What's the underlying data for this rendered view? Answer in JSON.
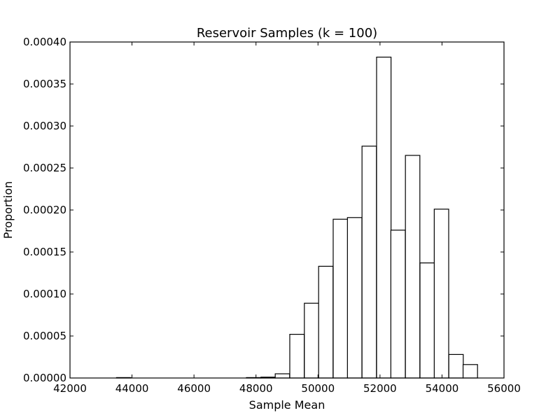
{
  "chart_data": {
    "type": "histogram",
    "title": "Reservoir Samples (k = 100)",
    "xlabel": "Sample Mean",
    "ylabel": "Proportion",
    "xlim": [
      42000,
      56000
    ],
    "ylim": [
      0,
      0.0004
    ],
    "xticks": [
      42000,
      44000,
      46000,
      48000,
      50000,
      52000,
      54000,
      56000
    ],
    "xtick_labels": [
      "42000",
      "44000",
      "46000",
      "48000",
      "50000",
      "52000",
      "54000",
      "56000"
    ],
    "yticks": [
      0,
      5e-05,
      0.0001,
      0.00015,
      0.0002,
      0.00025,
      0.0003,
      0.00035,
      0.0004
    ],
    "ytick_labels": [
      "0.00000",
      "0.00005",
      "0.00010",
      "0.00015",
      "0.00020",
      "0.00025",
      "0.00030",
      "0.00035",
      "0.00040"
    ],
    "bin_width": 466,
    "bins": [
      {
        "x0": 43500,
        "value": 5e-07
      },
      {
        "x0": 47690,
        "value": 5e-07
      },
      {
        "x0": 48160,
        "value": 1e-06
      },
      {
        "x0": 48620,
        "value": 5e-06
      },
      {
        "x0": 49090,
        "value": 5.2e-05
      },
      {
        "x0": 49560,
        "value": 8.9e-05
      },
      {
        "x0": 50020,
        "value": 0.000133
      },
      {
        "x0": 50490,
        "value": 0.000189
      },
      {
        "x0": 50950,
        "value": 0.000191
      },
      {
        "x0": 51420,
        "value": 0.000276
      },
      {
        "x0": 51890,
        "value": 0.000382
      },
      {
        "x0": 52350,
        "value": 0.000176
      },
      {
        "x0": 52820,
        "value": 0.000265
      },
      {
        "x0": 53290,
        "value": 0.000137
      },
      {
        "x0": 53750,
        "value": 0.000201
      },
      {
        "x0": 54220,
        "value": 2.8e-05
      },
      {
        "x0": 54680,
        "value": 1.6e-05
      }
    ],
    "bar_fill": "#ffffff",
    "bar_stroke": "#000000",
    "grid": false,
    "legend": "none"
  }
}
